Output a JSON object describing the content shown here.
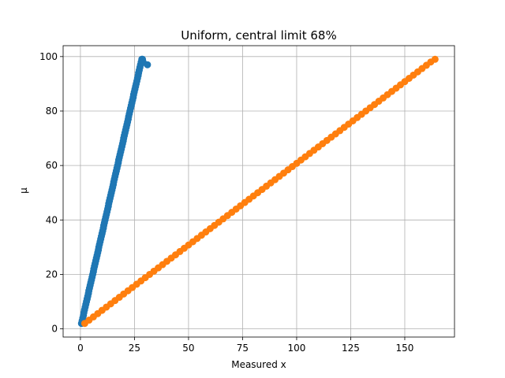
{
  "chart_data": {
    "type": "scatter",
    "title": "Uniform, central limit 68%",
    "xlabel": "Measured x",
    "ylabel": "μ",
    "xlim": [
      -8,
      173
    ],
    "ylim": [
      -3,
      104
    ],
    "xticks": [
      0,
      25,
      50,
      75,
      100,
      125,
      150
    ],
    "yticks": [
      0,
      20,
      40,
      60,
      80,
      100
    ],
    "grid": true,
    "series": [
      {
        "color": "#1f77b4",
        "x": [
          0.5,
          0.8,
          1.1,
          1.4,
          1.6,
          1.9,
          2.2,
          2.5,
          2.8,
          3.1,
          3.4,
          3.7,
          3.9,
          4.2,
          4.5,
          4.8,
          5.1,
          5.4,
          5.7,
          6.0,
          6.2,
          6.5,
          6.8,
          7.1,
          7.4,
          7.7,
          8.0,
          8.3,
          8.5,
          8.8,
          9.1,
          9.4,
          9.7,
          10.0,
          10.3,
          10.6,
          10.8,
          11.1,
          11.4,
          11.7,
          12.0,
          12.3,
          12.6,
          12.9,
          13.1,
          13.4,
          13.7,
          14.0,
          14.3,
          14.6,
          14.9,
          15.2,
          15.4,
          15.7,
          16.0,
          16.3,
          16.6,
          16.9,
          17.2,
          17.5,
          17.7,
          18.0,
          18.3,
          18.6,
          18.9,
          19.2,
          19.5,
          19.8,
          20.0,
          20.3,
          20.6,
          20.9,
          21.2,
          21.5,
          21.8,
          22.1,
          22.3,
          22.6,
          22.9,
          23.2,
          23.5,
          23.8,
          24.1,
          24.4,
          24.6,
          24.9,
          25.2,
          25.5,
          25.8,
          26.1,
          26.4,
          26.7,
          26.9,
          27.2,
          27.5,
          27.8,
          28.1,
          28.4,
          28.7,
          29.0,
          31.0
        ],
        "y": [
          2,
          3,
          4,
          5,
          6,
          7,
          8,
          9,
          10,
          11,
          12,
          13,
          14,
          15,
          16,
          17,
          18,
          19,
          20,
          21,
          22,
          23,
          24,
          25,
          26,
          27,
          28,
          29,
          30,
          31,
          32,
          33,
          34,
          35,
          36,
          37,
          38,
          39,
          40,
          41,
          42,
          43,
          44,
          45,
          46,
          47,
          48,
          49,
          50,
          51,
          52,
          53,
          54,
          55,
          56,
          57,
          58,
          59,
          60,
          61,
          62,
          63,
          64,
          65,
          66,
          67,
          68,
          69,
          70,
          71,
          72,
          73,
          74,
          75,
          76,
          77,
          78,
          79,
          80,
          81,
          82,
          83,
          84,
          85,
          86,
          87,
          88,
          89,
          90,
          91,
          92,
          93,
          94,
          95,
          96,
          97,
          98,
          99,
          99,
          98,
          97
        ]
      },
      {
        "color": "#ff7f0e",
        "x": [
          2,
          4,
          6,
          8,
          10,
          12,
          14,
          16,
          18,
          20,
          22,
          24,
          26,
          28,
          30,
          32,
          34,
          36,
          38,
          40,
          42,
          44,
          46,
          48,
          50,
          52,
          54,
          56,
          58,
          60,
          62,
          64,
          66,
          68,
          70,
          72,
          74,
          76,
          78,
          80,
          82,
          84,
          86,
          88,
          90,
          92,
          94,
          96,
          98,
          100,
          102,
          104,
          106,
          108,
          110,
          112,
          114,
          116,
          118,
          120,
          122,
          124,
          126,
          128,
          130,
          132,
          134,
          136,
          138,
          140,
          142,
          144,
          146,
          148,
          150,
          152,
          154,
          156,
          158,
          160,
          162,
          164
        ],
        "y": [
          2.0,
          3.2,
          4.4,
          5.6,
          6.8,
          8.0,
          9.2,
          10.4,
          11.6,
          12.8,
          14.0,
          15.2,
          16.4,
          17.6,
          18.8,
          20.0,
          21.2,
          22.4,
          23.6,
          24.8,
          26.0,
          27.2,
          28.4,
          29.6,
          30.8,
          32.0,
          33.2,
          34.4,
          35.6,
          36.8,
          38.0,
          39.2,
          40.4,
          41.6,
          42.8,
          44.0,
          45.2,
          46.4,
          47.6,
          48.8,
          50.0,
          51.2,
          52.4,
          53.6,
          54.8,
          56.0,
          57.2,
          58.4,
          59.6,
          60.8,
          62.0,
          63.2,
          64.4,
          65.6,
          66.8,
          68.0,
          69.2,
          70.4,
          71.6,
          72.8,
          74.0,
          75.2,
          76.4,
          77.6,
          78.8,
          80.0,
          81.2,
          82.4,
          83.6,
          84.8,
          86.0,
          87.2,
          88.4,
          89.6,
          90.8,
          92.0,
          93.2,
          94.4,
          95.6,
          96.8,
          98.0,
          99.0
        ]
      }
    ]
  }
}
